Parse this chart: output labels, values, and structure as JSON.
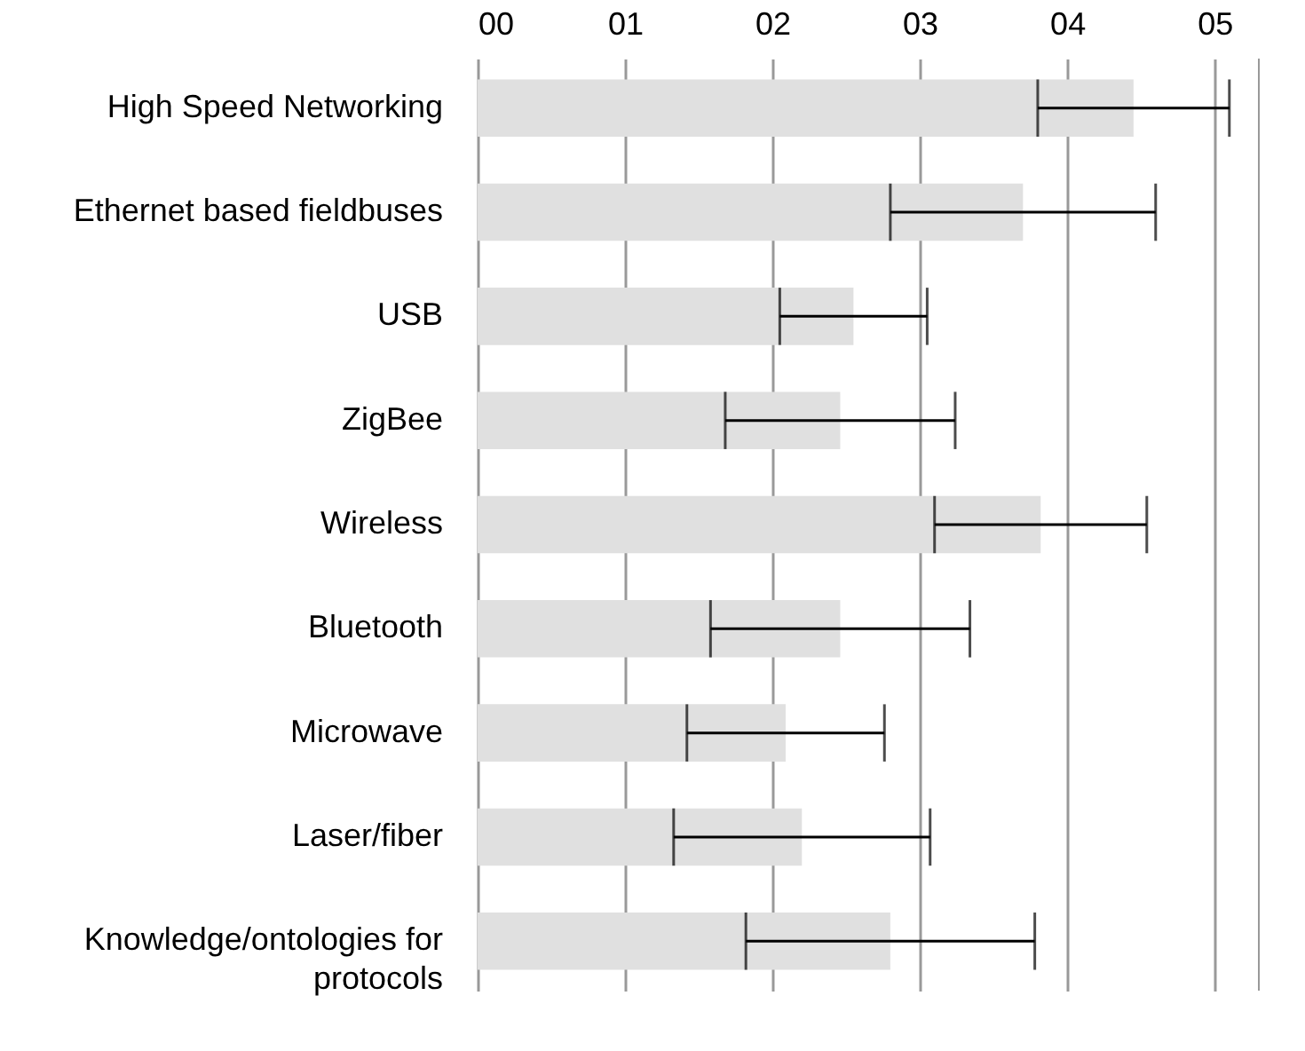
{
  "chart_data": {
    "type": "bar",
    "orientation": "horizontal",
    "categories": [
      "High Speed Networking",
      "Ethernet based fieldbuses",
      "USB",
      "ZigBee",
      "Wireless",
      "Bluetooth",
      "Microwave",
      "Laser/fiber",
      "Knowledge/ontologies for protocols"
    ],
    "values": [
      4.45,
      3.7,
      2.55,
      2.46,
      3.82,
      2.46,
      2.09,
      2.2,
      2.8
    ],
    "errors": [
      0.65,
      0.9,
      0.5,
      0.78,
      0.72,
      0.88,
      0.67,
      0.87,
      0.98
    ],
    "color": "#e0e0e0",
    "xlim": [
      0,
      5.3
    ],
    "xticks": [
      {
        "value": 0,
        "label": "00"
      },
      {
        "value": 1,
        "label": "01"
      },
      {
        "value": 2,
        "label": "02"
      },
      {
        "value": 3,
        "label": "03"
      },
      {
        "value": 4,
        "label": "04"
      },
      {
        "value": 5,
        "label": "05"
      }
    ],
    "grid": "x"
  }
}
